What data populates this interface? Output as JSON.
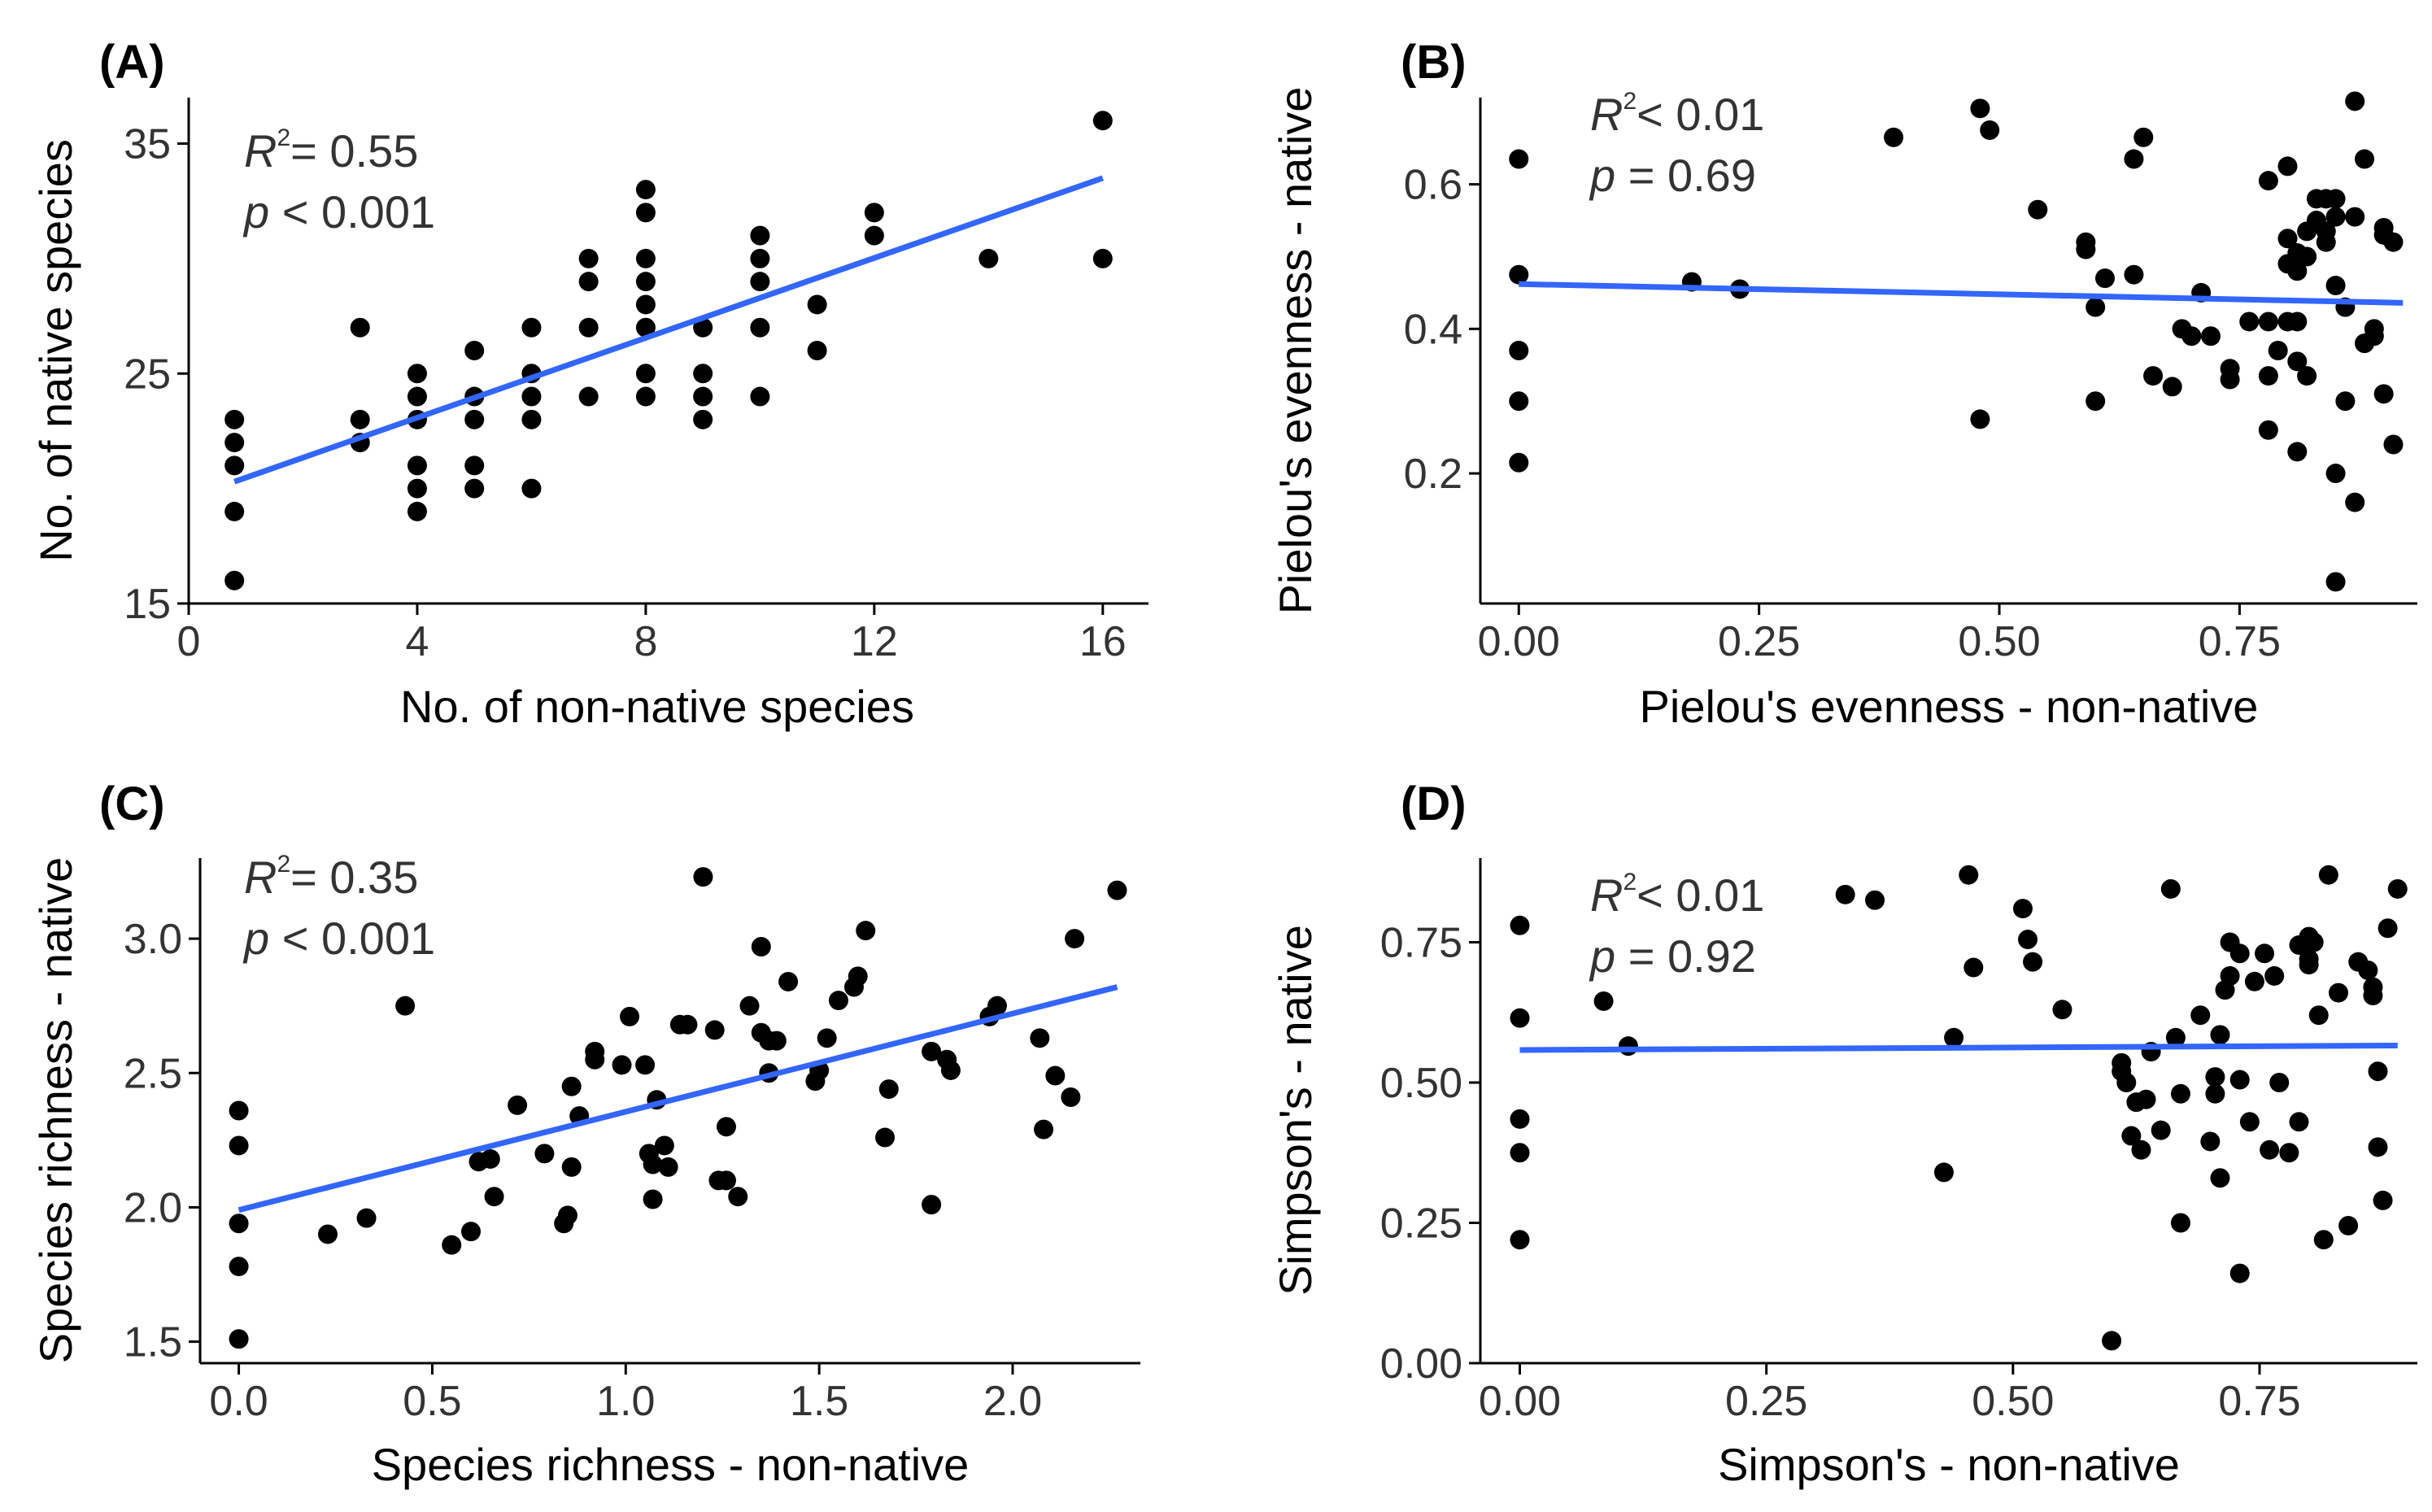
{
  "colors": {
    "point": "#000000",
    "fit_line": "#3366FF",
    "text": "#333333"
  },
  "chart_data": [
    {
      "panel": "(A)",
      "type": "scatter",
      "xlabel": "No. of non-native species",
      "ylabel": "No. of native species",
      "xlim": [
        0,
        16.8
      ],
      "ylim": [
        15,
        37
      ],
      "xticks": [
        0,
        4,
        8,
        12,
        16
      ],
      "xtick_labels": [
        "0",
        "4",
        "8",
        "12",
        "16"
      ],
      "yticks": [
        15,
        25,
        35
      ],
      "ytick_labels": [
        "15",
        "25",
        "35"
      ],
      "stats": {
        "r_symbol": "R",
        "sup": "2",
        "r_rel": "= 0.55",
        "p_symbol": "p",
        "p_rel": " < 0.001"
      },
      "fit": {
        "x": [
          0.8,
          16
        ],
        "y": [
          20.3,
          33.5
        ]
      },
      "points": [
        [
          0.8,
          16
        ],
        [
          0.8,
          19
        ],
        [
          0.8,
          21
        ],
        [
          0.8,
          22
        ],
        [
          0.8,
          23
        ],
        [
          3,
          22
        ],
        [
          3,
          23
        ],
        [
          3,
          27
        ],
        [
          4,
          19
        ],
        [
          4,
          20
        ],
        [
          4,
          21
        ],
        [
          4,
          23
        ],
        [
          4,
          24
        ],
        [
          4,
          25
        ],
        [
          5,
          20
        ],
        [
          5,
          21
        ],
        [
          5,
          23
        ],
        [
          5,
          24
        ],
        [
          5,
          26
        ],
        [
          6,
          20
        ],
        [
          6,
          23
        ],
        [
          6,
          24
        ],
        [
          6,
          25
        ],
        [
          6,
          27
        ],
        [
          7,
          24
        ],
        [
          7,
          27
        ],
        [
          7,
          29
        ],
        [
          7,
          30
        ],
        [
          8,
          24
        ],
        [
          8,
          25
        ],
        [
          8,
          27
        ],
        [
          8,
          28
        ],
        [
          8,
          29
        ],
        [
          8,
          30
        ],
        [
          8,
          32
        ],
        [
          8,
          33
        ],
        [
          9,
          23
        ],
        [
          9,
          24
        ],
        [
          9,
          25
        ],
        [
          9,
          27
        ],
        [
          10,
          24
        ],
        [
          10,
          27
        ],
        [
          10,
          29
        ],
        [
          10,
          30
        ],
        [
          10,
          31
        ],
        [
          11,
          26
        ],
        [
          11,
          28
        ],
        [
          12,
          31
        ],
        [
          12,
          32
        ],
        [
          14,
          30
        ],
        [
          16,
          30
        ],
        [
          16,
          36
        ]
      ]
    },
    {
      "panel": "(B)",
      "type": "scatter",
      "xlabel": "Pielou's evenness - non-native",
      "ylabel": "Pielou's evenness - native",
      "xlim": [
        -0.04,
        0.935
      ],
      "ylim": [
        0.02,
        0.72
      ],
      "xticks": [
        0,
        0.25,
        0.5,
        0.75
      ],
      "xtick_labels": [
        "0.00",
        "0.25",
        "0.50",
        "0.75"
      ],
      "yticks": [
        0.2,
        0.4,
        0.6
      ],
      "ytick_labels": [
        "0.2",
        "0.4",
        "0.6"
      ],
      "stats": {
        "r_symbol": "R",
        "sup": "2",
        "r_rel": "< 0.01",
        "p_symbol": "p",
        "p_rel": " = 0.69"
      },
      "fit": {
        "x": [
          0,
          0.92
        ],
        "y": [
          0.462,
          0.436
        ]
      },
      "points": [
        [
          0,
          0.635
        ],
        [
          0,
          0.475
        ],
        [
          0,
          0.37
        ],
        [
          0,
          0.3
        ],
        [
          0,
          0.215
        ],
        [
          0.18,
          0.465
        ],
        [
          0.23,
          0.455
        ],
        [
          0.39,
          0.665
        ],
        [
          0.48,
          0.705
        ],
        [
          0.49,
          0.675
        ],
        [
          0.48,
          0.275
        ],
        [
          0.54,
          0.565
        ],
        [
          0.59,
          0.52
        ],
        [
          0.59,
          0.51
        ],
        [
          0.6,
          0.43
        ],
        [
          0.6,
          0.3
        ],
        [
          0.61,
          0.47
        ],
        [
          0.64,
          0.475
        ],
        [
          0.64,
          0.635
        ],
        [
          0.65,
          0.665
        ],
        [
          0.66,
          0.335
        ],
        [
          0.68,
          0.32
        ],
        [
          0.69,
          0.4
        ],
        [
          0.7,
          0.39
        ],
        [
          0.71,
          0.45
        ],
        [
          0.72,
          0.39
        ],
        [
          0.74,
          0.33
        ],
        [
          0.74,
          0.345
        ],
        [
          0.76,
          0.41
        ],
        [
          0.78,
          0.605
        ],
        [
          0.78,
          0.41
        ],
        [
          0.78,
          0.335
        ],
        [
          0.78,
          0.26
        ],
        [
          0.79,
          0.37
        ],
        [
          0.8,
          0.525
        ],
        [
          0.8,
          0.49
        ],
        [
          0.8,
          0.41
        ],
        [
          0.8,
          0.625
        ],
        [
          0.81,
          0.505
        ],
        [
          0.81,
          0.48
        ],
        [
          0.81,
          0.41
        ],
        [
          0.81,
          0.355
        ],
        [
          0.81,
          0.23
        ],
        [
          0.82,
          0.5
        ],
        [
          0.82,
          0.535
        ],
        [
          0.82,
          0.335
        ],
        [
          0.83,
          0.55
        ],
        [
          0.83,
          0.58
        ],
        [
          0.84,
          0.52
        ],
        [
          0.84,
          0.58
        ],
        [
          0.84,
          0.535
        ],
        [
          0.85,
          0.555
        ],
        [
          0.85,
          0.58
        ],
        [
          0.85,
          0.46
        ],
        [
          0.85,
          0.2
        ],
        [
          0.85,
          0.05
        ],
        [
          0.86,
          0.43
        ],
        [
          0.86,
          0.3
        ],
        [
          0.87,
          0.715
        ],
        [
          0.87,
          0.555
        ],
        [
          0.87,
          0.16
        ],
        [
          0.88,
          0.38
        ],
        [
          0.88,
          0.635
        ],
        [
          0.89,
          0.39
        ],
        [
          0.89,
          0.4
        ],
        [
          0.9,
          0.54
        ],
        [
          0.9,
          0.53
        ],
        [
          0.9,
          0.31
        ],
        [
          0.91,
          0.52
        ],
        [
          0.91,
          0.24
        ]
      ]
    },
    {
      "panel": "(C)",
      "type": "scatter",
      "xlabel": "Species richness - non-native",
      "ylabel": "Species richness - native",
      "xlim": [
        -0.1,
        2.33
      ],
      "ylim": [
        1.42,
        3.3
      ],
      "xticks": [
        0,
        0.5,
        1.0,
        1.5,
        2.0
      ],
      "xtick_labels": [
        "0.0",
        "0.5",
        "1.0",
        "1.5",
        "2.0"
      ],
      "yticks": [
        1.5,
        2.0,
        2.5,
        3.0
      ],
      "ytick_labels": [
        "1.5",
        "2.0",
        "2.5",
        "3.0"
      ],
      "stats": {
        "r_symbol": "R",
        "sup": "2",
        "r_rel": "= 0.35",
        "p_symbol": "p",
        "p_rel": " < 0.001"
      },
      "fit": {
        "x": [
          0,
          2.27
        ],
        "y": [
          1.99,
          2.82
        ]
      },
      "points": [
        [
          0,
          2.36
        ],
        [
          0,
          2.23
        ],
        [
          0,
          1.94
        ],
        [
          0,
          1.78
        ],
        [
          0,
          1.51
        ],
        [
          0.23,
          1.9
        ],
        [
          0.33,
          1.96
        ],
        [
          0.43,
          2.75
        ],
        [
          0.55,
          1.86
        ],
        [
          0.6,
          1.91
        ],
        [
          0.62,
          2.17
        ],
        [
          0.65,
          2.18
        ],
        [
          0.66,
          2.04
        ],
        [
          0.72,
          2.38
        ],
        [
          0.79,
          2.2
        ],
        [
          0.84,
          1.94
        ],
        [
          0.85,
          1.97
        ],
        [
          0.86,
          2.15
        ],
        [
          0.86,
          2.45
        ],
        [
          0.88,
          2.34
        ],
        [
          0.92,
          2.55
        ],
        [
          0.92,
          2.58
        ],
        [
          0.99,
          2.53
        ],
        [
          1.01,
          2.71
        ],
        [
          1.05,
          2.53
        ],
        [
          1.06,
          2.2
        ],
        [
          1.07,
          2.03
        ],
        [
          1.07,
          2.16
        ],
        [
          1.08,
          2.4
        ],
        [
          1.1,
          2.23
        ],
        [
          1.11,
          2.15
        ],
        [
          1.14,
          2.68
        ],
        [
          1.16,
          2.68
        ],
        [
          1.2,
          3.23
        ],
        [
          1.23,
          2.66
        ],
        [
          1.24,
          2.1
        ],
        [
          1.26,
          2.1
        ],
        [
          1.26,
          2.3
        ],
        [
          1.29,
          2.04
        ],
        [
          1.32,
          2.75
        ],
        [
          1.35,
          2.97
        ],
        [
          1.35,
          2.65
        ],
        [
          1.37,
          2.62
        ],
        [
          1.37,
          2.5
        ],
        [
          1.39,
          2.62
        ],
        [
          1.42,
          2.84
        ],
        [
          1.49,
          2.47
        ],
        [
          1.5,
          2.51
        ],
        [
          1.52,
          2.63
        ],
        [
          1.55,
          2.77
        ],
        [
          1.59,
          2.82
        ],
        [
          1.6,
          2.86
        ],
        [
          1.62,
          3.03
        ],
        [
          1.67,
          2.26
        ],
        [
          1.68,
          2.44
        ],
        [
          1.79,
          2.01
        ],
        [
          1.79,
          2.58
        ],
        [
          1.83,
          2.55
        ],
        [
          1.84,
          2.51
        ],
        [
          1.94,
          2.71
        ],
        [
          1.96,
          2.75
        ],
        [
          2.07,
          2.63
        ],
        [
          2.08,
          2.29
        ],
        [
          2.11,
          2.49
        ],
        [
          2.15,
          2.41
        ],
        [
          2.16,
          3.0
        ],
        [
          2.27,
          3.18
        ]
      ]
    },
    {
      "panel": "(D)",
      "type": "scatter",
      "xlabel": "Simpson's - non-native",
      "ylabel": "Simpson's - native",
      "xlim": [
        -0.04,
        0.91
      ],
      "ylim": [
        0,
        0.9
      ],
      "xticks": [
        0,
        0.25,
        0.5,
        0.75
      ],
      "xtick_labels": [
        "0.00",
        "0.25",
        "0.50",
        "0.75"
      ],
      "yticks": [
        0,
        0.25,
        0.5,
        0.75
      ],
      "ytick_labels": [
        "0.00",
        "0.25",
        "0.50",
        "0.75"
      ],
      "stats": {
        "r_symbol": "R",
        "sup": "2",
        "r_rel": "< 0.01",
        "p_symbol": "p",
        "p_rel": " = 0.92"
      },
      "fit": {
        "x": [
          0,
          0.89
        ],
        "y": [
          0.558,
          0.566
        ]
      },
      "points": [
        [
          0,
          0.78
        ],
        [
          0,
          0.615
        ],
        [
          0,
          0.435
        ],
        [
          0,
          0.375
        ],
        [
          0,
          0.22
        ],
        [
          0.085,
          0.645
        ],
        [
          0.11,
          0.565
        ],
        [
          0.33,
          0.835
        ],
        [
          0.36,
          0.825
        ],
        [
          0.43,
          0.34
        ],
        [
          0.44,
          0.58
        ],
        [
          0.455,
          0.87
        ],
        [
          0.46,
          0.705
        ],
        [
          0.51,
          0.81
        ],
        [
          0.515,
          0.755
        ],
        [
          0.52,
          0.715
        ],
        [
          0.55,
          0.63
        ],
        [
          0.6,
          0.04
        ],
        [
          0.61,
          0.52
        ],
        [
          0.61,
          0.535
        ],
        [
          0.615,
          0.5
        ],
        [
          0.62,
          0.405
        ],
        [
          0.625,
          0.465
        ],
        [
          0.63,
          0.38
        ],
        [
          0.635,
          0.47
        ],
        [
          0.64,
          0.555
        ],
        [
          0.65,
          0.415
        ],
        [
          0.66,
          0.845
        ],
        [
          0.665,
          0.58
        ],
        [
          0.67,
          0.48
        ],
        [
          0.67,
          0.25
        ],
        [
          0.69,
          0.62
        ],
        [
          0.7,
          0.395
        ],
        [
          0.705,
          0.51
        ],
        [
          0.705,
          0.48
        ],
        [
          0.71,
          0.585
        ],
        [
          0.71,
          0.33
        ],
        [
          0.715,
          0.665
        ],
        [
          0.72,
          0.69
        ],
        [
          0.72,
          0.75
        ],
        [
          0.73,
          0.73
        ],
        [
          0.73,
          0.505
        ],
        [
          0.73,
          0.16
        ],
        [
          0.74,
          0.43
        ],
        [
          0.745,
          0.68
        ],
        [
          0.755,
          0.73
        ],
        [
          0.76,
          0.38
        ],
        [
          0.765,
          0.69
        ],
        [
          0.77,
          0.5
        ],
        [
          0.78,
          0.375
        ],
        [
          0.79,
          0.745
        ],
        [
          0.79,
          0.43
        ],
        [
          0.8,
          0.76
        ],
        [
          0.8,
          0.72
        ],
        [
          0.8,
          0.71
        ],
        [
          0.805,
          0.75
        ],
        [
          0.81,
          0.62
        ],
        [
          0.815,
          0.22
        ],
        [
          0.82,
          0.87
        ],
        [
          0.83,
          0.66
        ],
        [
          0.84,
          0.245
        ],
        [
          0.85,
          0.715
        ],
        [
          0.86,
          0.7
        ],
        [
          0.865,
          0.655
        ],
        [
          0.865,
          0.67
        ],
        [
          0.87,
          0.52
        ],
        [
          0.87,
          0.385
        ],
        [
          0.875,
          0.29
        ],
        [
          0.88,
          0.775
        ],
        [
          0.89,
          0.845
        ]
      ]
    }
  ]
}
